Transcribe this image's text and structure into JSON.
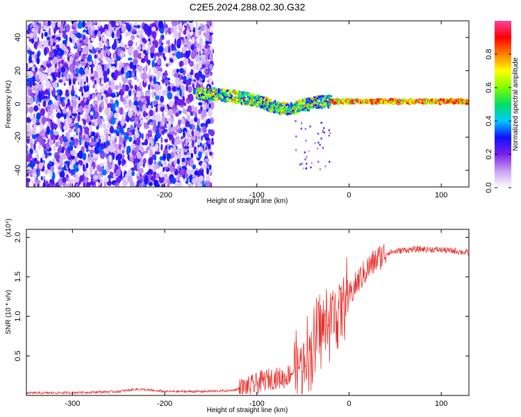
{
  "title": "C2E5.2024.288.02.30.G32",
  "chart_data": [
    {
      "type": "heatmap",
      "xlabel": "Height of straight line (km)",
      "ylabel": "Frequency (Hz)",
      "xlim": [
        -350,
        130
      ],
      "ylim": [
        -50,
        50
      ],
      "x_ticks": [
        -300,
        -200,
        -100,
        0,
        100
      ],
      "x_tick_labels": [
        "-300",
        "-200",
        "-100",
        "0",
        "100"
      ],
      "y_ticks": [
        -40,
        -20,
        0,
        20,
        40
      ],
      "y_tick_labels": [
        "-40",
        "-20",
        "0",
        "20",
        "40"
      ],
      "colorbar": {
        "label": "Normalized spectral amplitude",
        "range": [
          0,
          1
        ],
        "ticks": [
          0.0,
          0.2,
          0.4,
          0.6,
          0.8
        ],
        "tick_labels": [
          "0.0",
          "0.2",
          "0.4",
          "0.6",
          "0.8"
        ],
        "colormap": [
          "#ffffff",
          "#c8a0f0",
          "#7a20e8",
          "#1010ff",
          "#00c8ff",
          "#00e060",
          "#80ff00",
          "#ffff00",
          "#ff8000",
          "#ff0000",
          "#ff40a0"
        ]
      },
      "signal_track": [
        {
          "x": -165,
          "y": 6
        },
        {
          "x": -150,
          "y": 6
        },
        {
          "x": -130,
          "y": 5
        },
        {
          "x": -110,
          "y": 3
        },
        {
          "x": -95,
          "y": 1
        },
        {
          "x": -80,
          "y": -2
        },
        {
          "x": -65,
          "y": -3
        },
        {
          "x": -50,
          "y": -1
        },
        {
          "x": -35,
          "y": 1
        },
        {
          "x": -20,
          "y": 1.5
        },
        {
          "x": 0,
          "y": 1.5
        },
        {
          "x": 40,
          "y": 1.5
        },
        {
          "x": 80,
          "y": 1.5
        },
        {
          "x": 130,
          "y": 1.5
        }
      ]
    },
    {
      "type": "line",
      "xlabel": "Height of straight line (km)",
      "ylabel": "SNR (10 * v/v)",
      "y_scale_label": "(x10⁴)",
      "xlim": [
        -350,
        130
      ],
      "ylim": [
        0,
        2.1
      ],
      "x_ticks": [
        -300,
        -200,
        -100,
        0,
        100
      ],
      "x_tick_labels": [
        "-300",
        "-200",
        "-100",
        "0",
        "100"
      ],
      "y_ticks": [
        0.5,
        1.0,
        1.5,
        2.0
      ],
      "y_tick_labels": [
        "0.5",
        "1.0",
        "1.5",
        "2.0"
      ],
      "series": [
        {
          "color": "#e8302c",
          "x": [
            -350,
            -300,
            -250,
            -230,
            -200,
            -160,
            -130,
            -110,
            -100,
            -90,
            -80,
            -70,
            -60,
            -50,
            -40,
            -30,
            -20,
            -10,
            0,
            10,
            20,
            30,
            40,
            60,
            80,
            100,
            120,
            130
          ],
          "y": [
            0.03,
            0.035,
            0.05,
            0.08,
            0.05,
            0.05,
            0.06,
            0.1,
            0.15,
            0.2,
            0.22,
            0.22,
            0.32,
            0.45,
            0.6,
            0.85,
            0.95,
            1.15,
            1.25,
            1.45,
            1.6,
            1.72,
            1.8,
            1.84,
            1.85,
            1.84,
            1.82,
            1.8
          ]
        }
      ]
    }
  ]
}
